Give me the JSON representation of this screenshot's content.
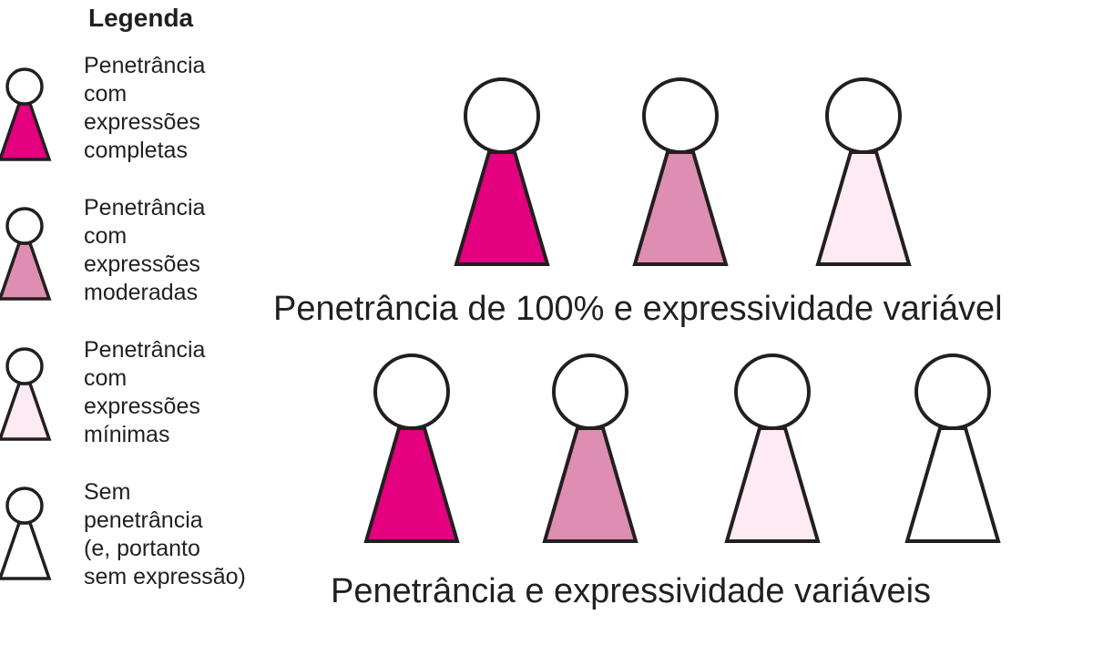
{
  "legend": {
    "title": "Legenda",
    "items": [
      {
        "lines": [
          "Penetrância",
          "com",
          "expressões",
          "completas"
        ],
        "color": "#e4007f"
      },
      {
        "lines": [
          "Penetrância",
          "com",
          "expressões",
          "moderadas"
        ],
        "color": "#de8eb1"
      },
      {
        "lines": [
          "Penetrância",
          "com",
          "expressões",
          "mínimas"
        ],
        "color": "#fdeaf2"
      },
      {
        "lines": [
          "Sem",
          "penetrância",
          "(e, portanto",
          "sem expressão)"
        ],
        "color": "#ffffff"
      }
    ]
  },
  "groups": [
    {
      "caption": "Penetrância de 100% e expressividade variável",
      "levels": [
        0,
        1,
        2
      ]
    },
    {
      "caption": "Penetrância e expressividade variáveis",
      "levels": [
        0,
        1,
        2,
        3
      ]
    }
  ],
  "colors": {
    "stroke": "#231f20"
  }
}
